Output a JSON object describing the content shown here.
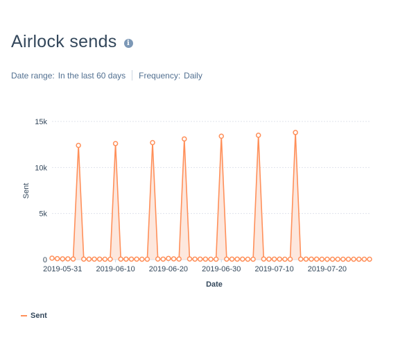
{
  "header": {
    "title": "Airlock sends",
    "info_icon": "info-circle-icon"
  },
  "filters": {
    "date_range_label": "Date range:",
    "date_range_value": "In the last 60 days",
    "frequency_label": "Frequency:",
    "frequency_value": "Daily"
  },
  "colors": {
    "series_line": "#ff8f59",
    "series_fill": "#fde3d7",
    "grid": "#dfe3eb",
    "axis_text": "#33475b"
  },
  "chart_data": {
    "type": "area",
    "title": "Airlock sends",
    "xlabel": "Date",
    "ylabel": "Sent",
    "x_start": "2019-05-29",
    "x_end": "2019-07-28",
    "ylim": [
      0,
      15000
    ],
    "y_ticks": [
      0,
      5000,
      10000,
      15000
    ],
    "y_tick_labels": [
      "0",
      "5k",
      "10k",
      "15k"
    ],
    "x_ticks": [
      "2019-05-31",
      "2019-06-10",
      "2019-06-20",
      "2019-06-30",
      "2019-07-10",
      "2019-07-20"
    ],
    "grid": true,
    "legend_position": "bottom-left",
    "series": [
      {
        "name": "Sent",
        "x": [
          "2019-05-29",
          "2019-05-30",
          "2019-05-31",
          "2019-06-01",
          "2019-06-02",
          "2019-06-03",
          "2019-06-04",
          "2019-06-05",
          "2019-06-06",
          "2019-06-07",
          "2019-06-08",
          "2019-06-09",
          "2019-06-10",
          "2019-06-11",
          "2019-06-12",
          "2019-06-13",
          "2019-06-14",
          "2019-06-15",
          "2019-06-16",
          "2019-06-17",
          "2019-06-18",
          "2019-06-19",
          "2019-06-20",
          "2019-06-21",
          "2019-06-22",
          "2019-06-23",
          "2019-06-24",
          "2019-06-25",
          "2019-06-26",
          "2019-06-27",
          "2019-06-28",
          "2019-06-29",
          "2019-06-30",
          "2019-07-01",
          "2019-07-02",
          "2019-07-03",
          "2019-07-04",
          "2019-07-05",
          "2019-07-06",
          "2019-07-07",
          "2019-07-08",
          "2019-07-09",
          "2019-07-10",
          "2019-07-11",
          "2019-07-12",
          "2019-07-13",
          "2019-07-14",
          "2019-07-15",
          "2019-07-16",
          "2019-07-17",
          "2019-07-18",
          "2019-07-19",
          "2019-07-20",
          "2019-07-21",
          "2019-07-22",
          "2019-07-23",
          "2019-07-24",
          "2019-07-25",
          "2019-07-26",
          "2019-07-27",
          "2019-07-28"
        ],
        "values": [
          150,
          100,
          80,
          80,
          60,
          12400,
          50,
          50,
          50,
          50,
          40,
          40,
          12600,
          50,
          50,
          50,
          50,
          40,
          40,
          12700,
          60,
          50,
          120,
          80,
          60,
          13100,
          70,
          50,
          50,
          50,
          40,
          40,
          13400,
          50,
          50,
          50,
          50,
          40,
          40,
          13500,
          60,
          50,
          50,
          50,
          40,
          40,
          13800,
          50,
          50,
          50,
          50,
          40,
          40,
          40,
          40,
          40,
          40,
          40,
          40,
          40,
          40
        ]
      }
    ]
  },
  "legend": {
    "items": [
      {
        "label": "Sent"
      }
    ]
  }
}
